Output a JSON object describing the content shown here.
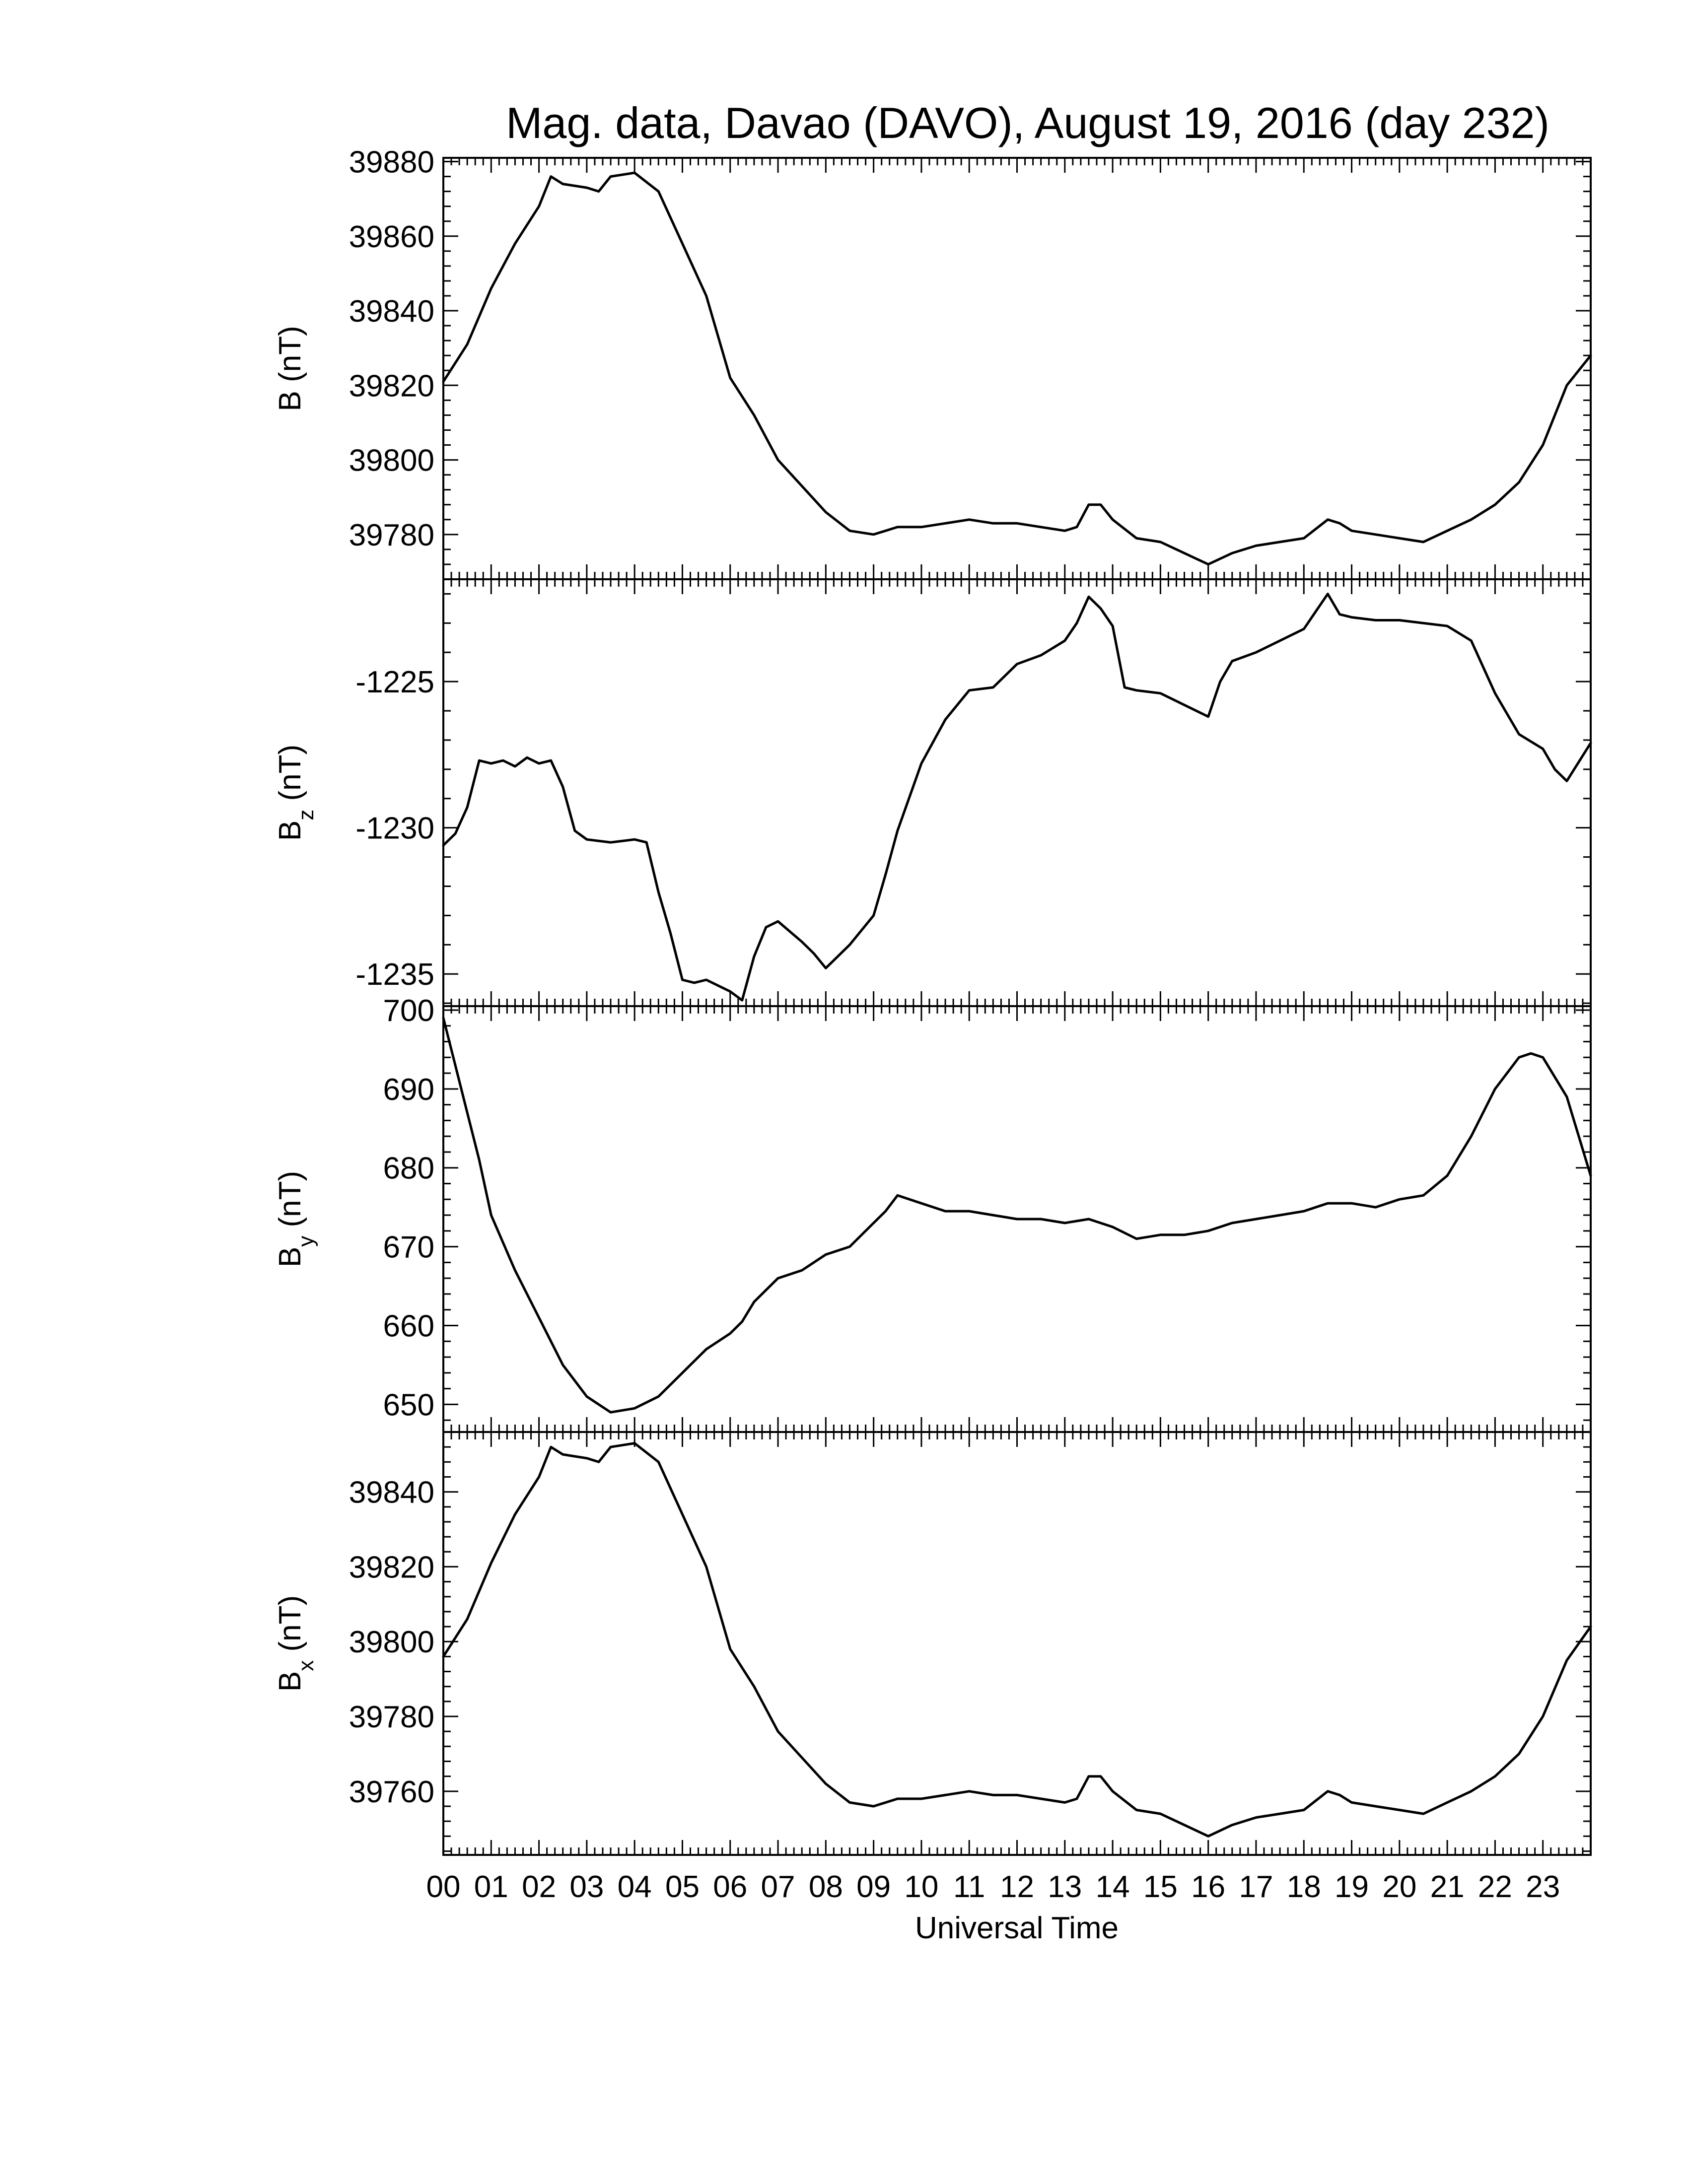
{
  "chart_data": {
    "type": "line",
    "title": "Mag. data, Davao (DAVO), August 19, 2016 (day 232)",
    "xlabel": "Universal Time",
    "x_ticks": [
      "00",
      "01",
      "02",
      "03",
      "04",
      "05",
      "06",
      "07",
      "08",
      "09",
      "10",
      "11",
      "12",
      "13",
      "14",
      "15",
      "16",
      "17",
      "18",
      "19",
      "20",
      "21",
      "22",
      "23"
    ],
    "xlim": [
      0,
      24
    ],
    "x_unit": "hours UT",
    "panels": [
      {
        "id": "B",
        "ylabel_main": "B",
        "ylabel_sub": "",
        "ylabel_unit": "(nT)",
        "ylim": [
          39768,
          39881
        ],
        "y_ticks": [
          "39880",
          "39860",
          "39840",
          "39820",
          "39800",
          "39780"
        ],
        "y_tick_values": [
          39880,
          39860,
          39840,
          39820,
          39800,
          39780
        ],
        "x": [
          0,
          0.5,
          1,
          1.5,
          2,
          2.25,
          2.5,
          3,
          3.25,
          3.5,
          4,
          4.5,
          5,
          5.5,
          6,
          6.5,
          7,
          7.5,
          8,
          8.5,
          9,
          9.5,
          10,
          10.5,
          11,
          11.5,
          12,
          12.5,
          13,
          13.25,
          13.5,
          13.75,
          14,
          14.5,
          15,
          15.5,
          16,
          16.5,
          17,
          17.5,
          18,
          18.5,
          18.75,
          19,
          19.5,
          20,
          20.5,
          21,
          21.5,
          22,
          22.5,
          23,
          23.5,
          24
        ],
        "values": [
          39821,
          39831,
          39846,
          39858,
          39868,
          39876,
          39874,
          39873,
          39872,
          39876,
          39877,
          39872,
          39858,
          39844,
          39822,
          39812,
          39800,
          39793,
          39786,
          39781,
          39780,
          39782,
          39782,
          39783,
          39784,
          39783,
          39783,
          39782,
          39781,
          39782,
          39788,
          39788,
          39784,
          39779,
          39778,
          39775,
          39772,
          39775,
          39777,
          39778,
          39779,
          39784,
          39783,
          39781,
          39780,
          39779,
          39778,
          39781,
          39784,
          39788,
          39794,
          39804,
          39820,
          39828
        ]
      },
      {
        "id": "Bz",
        "ylabel_main": "B",
        "ylabel_sub": "z",
        "ylabel_unit": "(nT)",
        "ylim": [
          -1236.1,
          -1221.5
        ],
        "y_ticks": [
          "-1225",
          "-1230",
          "-1235"
        ],
        "y_tick_values": [
          -1225,
          -1230,
          -1235
        ],
        "x": [
          0,
          0.25,
          0.5,
          0.75,
          1,
          1.25,
          1.5,
          1.75,
          2,
          2.25,
          2.5,
          2.75,
          3,
          3.5,
          4,
          4.25,
          4.5,
          4.75,
          5,
          5.25,
          5.5,
          6,
          6.25,
          6.5,
          6.75,
          7,
          7.5,
          7.75,
          8,
          8.25,
          8.5,
          9,
          9.25,
          9.5,
          10,
          10.5,
          11,
          11.5,
          12,
          12.5,
          13,
          13.25,
          13.5,
          13.75,
          14,
          14.25,
          14.5,
          15,
          15.5,
          16,
          16.25,
          16.5,
          17,
          17.5,
          18,
          18.25,
          18.5,
          18.75,
          19,
          19.5,
          20,
          20.5,
          21,
          21.5,
          22,
          22.5,
          23,
          23.25,
          23.5,
          24
        ],
        "values": [
          -1230.6,
          -1230.2,
          -1229.3,
          -1227.7,
          -1227.8,
          -1227.7,
          -1227.9,
          -1227.6,
          -1227.8,
          -1227.7,
          -1228.6,
          -1230.1,
          -1230.4,
          -1230.5,
          -1230.4,
          -1230.5,
          -1232.2,
          -1233.6,
          -1235.2,
          -1235.3,
          -1235.2,
          -1235.6,
          -1235.9,
          -1234.4,
          -1233.4,
          -1233.2,
          -1233.9,
          -1234.3,
          -1234.8,
          -1234.4,
          -1234.0,
          -1233.0,
          -1231.6,
          -1230.1,
          -1227.8,
          -1226.3,
          -1225.3,
          -1225.2,
          -1224.4,
          -1224.1,
          -1223.6,
          -1223.0,
          -1222.1,
          -1222.5,
          -1223.1,
          -1225.2,
          -1225.3,
          -1225.4,
          -1225.8,
          -1226.2,
          -1225.0,
          -1224.3,
          -1224.0,
          -1223.6,
          -1223.2,
          -1222.6,
          -1222.0,
          -1222.7,
          -1222.8,
          -1222.9,
          -1222.9,
          -1223.0,
          -1223.1,
          -1223.6,
          -1225.4,
          -1226.8,
          -1227.3,
          -1228.0,
          -1228.4,
          -1227.1
        ]
      },
      {
        "id": "By",
        "ylabel_main": "B",
        "ylabel_sub": "y",
        "ylabel_unit": "(nT)",
        "ylim": [
          646.5,
          700.5
        ],
        "y_ticks": [
          "700",
          "690",
          "680",
          "670",
          "660",
          "650"
        ],
        "y_tick_values": [
          700,
          690,
          680,
          670,
          660,
          650
        ],
        "x": [
          0,
          0.25,
          0.5,
          0.75,
          1,
          1.5,
          2,
          2.5,
          3,
          3.25,
          3.5,
          4,
          4.5,
          5,
          5.5,
          6,
          6.25,
          6.5,
          7,
          7.5,
          8,
          8.5,
          9,
          9.25,
          9.5,
          10,
          10.5,
          11,
          11.5,
          12,
          12.5,
          13,
          13.5,
          14,
          14.5,
          15,
          15.5,
          16,
          16.5,
          17,
          17.5,
          18,
          18.5,
          19,
          19.5,
          20,
          20.5,
          21,
          21.5,
          22,
          22.5,
          22.75,
          23,
          23.5,
          24
        ],
        "values": [
          699,
          693,
          687,
          681,
          674,
          667,
          661,
          655,
          651,
          650,
          649,
          649.5,
          651,
          654,
          657,
          659,
          660.5,
          663,
          666,
          667,
          669,
          670,
          673,
          674.5,
          676.5,
          675.5,
          674.5,
          674.5,
          674,
          673.5,
          673.5,
          673,
          673.5,
          672.5,
          671,
          671.5,
          671.5,
          672,
          673,
          673.5,
          674,
          674.5,
          675.5,
          675.5,
          675,
          676,
          676.5,
          679,
          684,
          690,
          694,
          694.5,
          694,
          689,
          679
        ]
      },
      {
        "id": "Bx",
        "ylabel_main": "B",
        "ylabel_sub": "x",
        "ylabel_unit": "(nT)",
        "ylim": [
          39743,
          39856
        ],
        "y_ticks": [
          "39840",
          "39820",
          "39800",
          "39780",
          "39760"
        ],
        "y_tick_values": [
          39840,
          39820,
          39800,
          39780,
          39760
        ],
        "x": [
          0,
          0.5,
          1,
          1.5,
          2,
          2.25,
          2.5,
          3,
          3.25,
          3.5,
          4,
          4.5,
          5,
          5.5,
          6,
          6.5,
          7,
          7.5,
          8,
          8.5,
          9,
          9.5,
          10,
          10.5,
          11,
          11.5,
          12,
          12.5,
          13,
          13.25,
          13.5,
          13.75,
          14,
          14.5,
          15,
          15.5,
          16,
          16.5,
          17,
          17.5,
          18,
          18.5,
          18.75,
          19,
          19.5,
          20,
          20.5,
          21,
          21.5,
          22,
          22.5,
          23,
          23.5,
          24
        ],
        "values": [
          39796,
          39806,
          39821,
          39834,
          39844,
          39852,
          39850,
          39849,
          39848,
          39852,
          39853,
          39848,
          39834,
          39820,
          39798,
          39788,
          39776,
          39769,
          39762,
          39757,
          39756,
          39758,
          39758,
          39759,
          39760,
          39759,
          39759,
          39758,
          39757,
          39758,
          39764,
          39764,
          39760,
          39755,
          39754,
          39751,
          39748,
          39751,
          39753,
          39754,
          39755,
          39760,
          39759,
          39757,
          39756,
          39755,
          39754,
          39757,
          39760,
          39764,
          39770,
          39780,
          39795,
          39804
        ]
      }
    ],
    "grid": false,
    "legend": "none"
  }
}
